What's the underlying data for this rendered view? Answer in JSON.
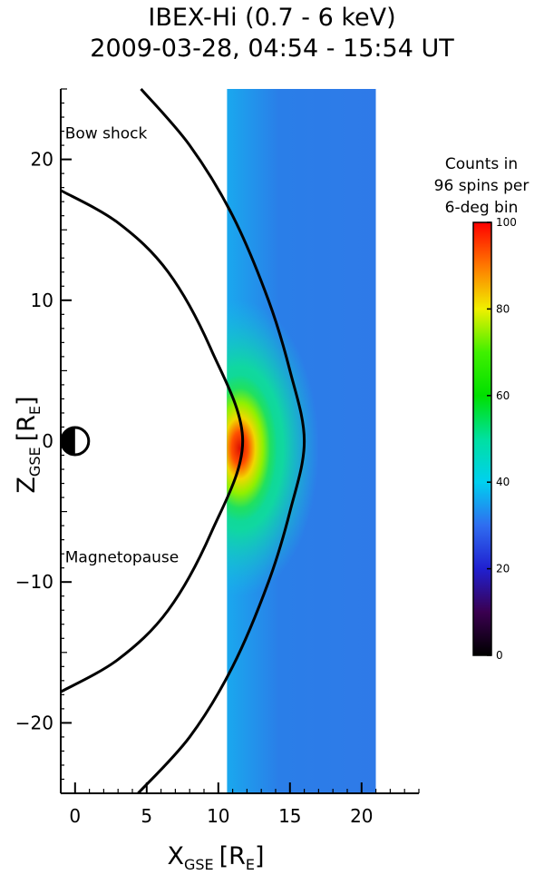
{
  "title": {
    "line1": "IBEX-Hi (0.7 - 6 keV)",
    "line2": "2009-03-28, 04:54 - 15:54 UT"
  },
  "chart_data": {
    "type": "heatmap",
    "xlabel": "X",
    "xlabel_sub": "GSE",
    "xlabel_unit": "[R",
    "xlabel_unit_sub": "E",
    "xlabel_unit_end": "]",
    "ylabel": "Z",
    "ylabel_sub": "GSE",
    "ylabel_unit": "[R",
    "ylabel_unit_sub": "E",
    "ylabel_unit_end": "]",
    "xlim": [
      -1,
      24
    ],
    "ylim": [
      -25,
      25
    ],
    "x_ticks": [
      0,
      5,
      10,
      15,
      20
    ],
    "y_ticks": [
      -20,
      -10,
      0,
      10,
      20
    ],
    "heatmap_x_range": [
      10.6,
      21
    ],
    "heatmap_z_range": [
      -25,
      25
    ],
    "boundaries": [
      {
        "name": "Bow shock",
        "label_at": [
          -0.7,
          21.5
        ],
        "nose_x": 16,
        "curve": [
          [
            4.4,
            -25
          ],
          [
            8,
            -21
          ],
          [
            11,
            -16
          ],
          [
            13.5,
            -10
          ],
          [
            15,
            -5
          ],
          [
            16,
            0
          ],
          [
            15,
            5
          ],
          [
            13.5,
            10
          ],
          [
            11,
            16
          ],
          [
            8,
            21
          ],
          [
            4.6,
            25
          ]
        ]
      },
      {
        "name": "Magnetopause",
        "label_at": [
          -0.7,
          -8.6
        ],
        "nose_x": 11.7,
        "curve": [
          [
            -1,
            -17.8
          ],
          [
            3,
            -15.5
          ],
          [
            6.5,
            -12
          ],
          [
            9.5,
            -6.5
          ],
          [
            11.7,
            0
          ],
          [
            9.5,
            6.5
          ],
          [
            6.5,
            12
          ],
          [
            3,
            15.5
          ],
          [
            -1,
            17.8
          ]
        ]
      }
    ],
    "colorbar": {
      "title_lines": [
        "Counts in",
        "96 spins per",
        "6-deg bin"
      ],
      "min": 0,
      "max": 100,
      "ticks": [
        0,
        20,
        40,
        60,
        80,
        100
      ]
    },
    "max_emission": {
      "x": 11.5,
      "z": -0.5,
      "value": 95
    }
  }
}
